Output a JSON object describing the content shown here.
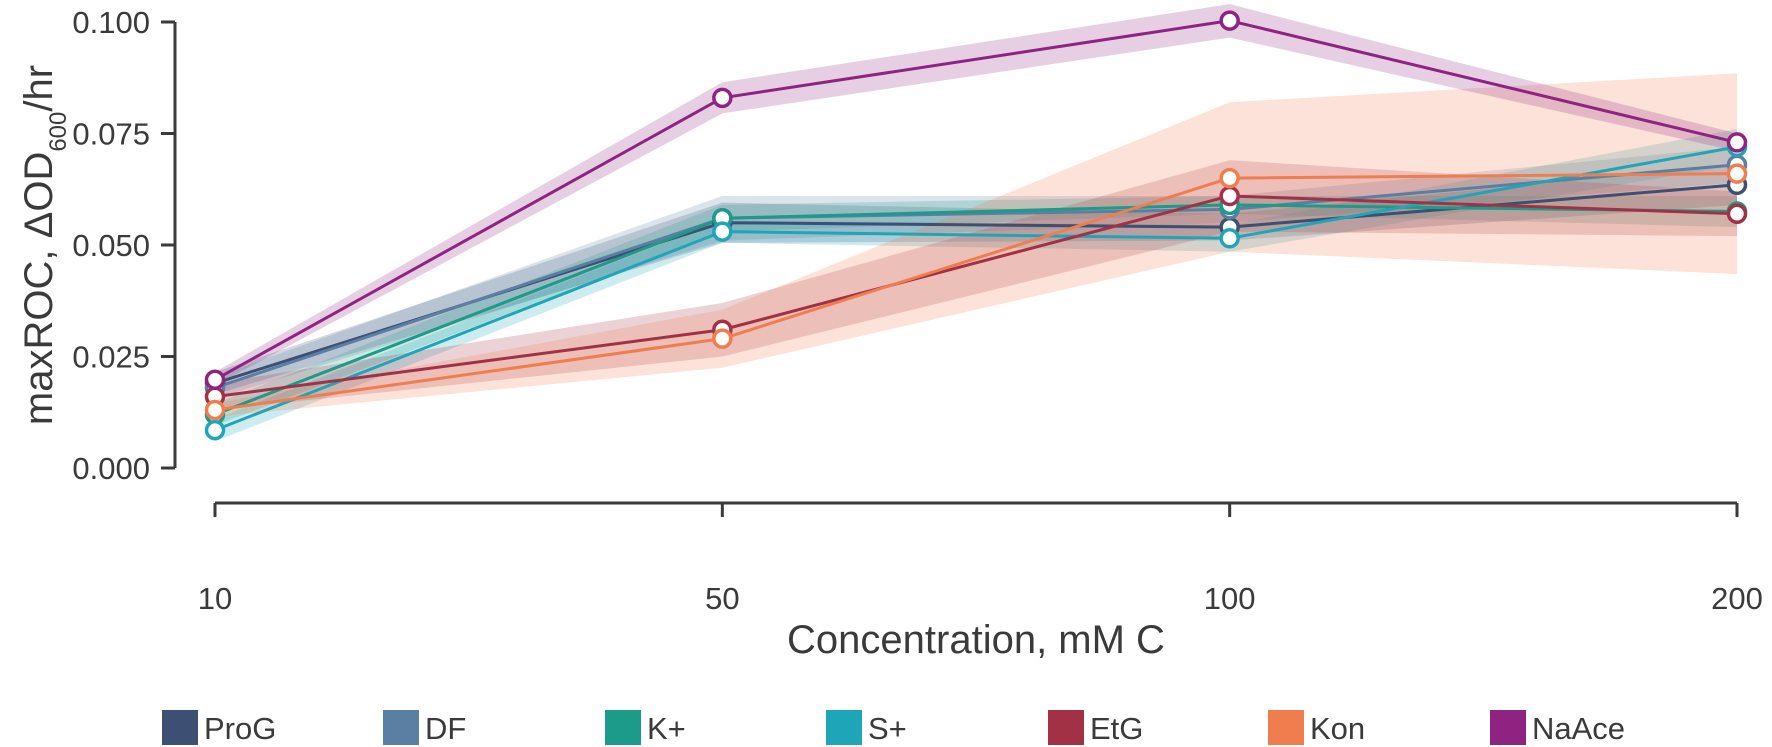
{
  "chart_data": {
    "type": "line",
    "xlabel": "Concentration, mM C",
    "ylabel": {
      "prefix": "maxROC, ΔOD",
      "subscript": "600",
      "suffix": "/hr"
    },
    "categories": [
      "10",
      "50",
      "100",
      "200"
    ],
    "ylim": [
      0.0,
      0.1
    ],
    "yticks": [
      "0.000",
      "0.025",
      "0.050",
      "0.075",
      "0.100"
    ],
    "ytick_values": [
      0.0,
      0.025,
      0.05,
      0.075,
      0.1
    ],
    "grid": false,
    "legend_position": "bottom",
    "series": [
      {
        "name": "ProG",
        "color": "#3d4f73",
        "values": [
          0.019,
          0.055,
          0.054,
          0.0635
        ],
        "lower": [
          0.0165,
          0.0505,
          0.051,
          0.059
        ],
        "upper": [
          0.0215,
          0.0595,
          0.057,
          0.068
        ]
      },
      {
        "name": "DF",
        "color": "#5a7fa3",
        "values": [
          0.018,
          0.056,
          0.058,
          0.068
        ],
        "lower": [
          0.0155,
          0.051,
          0.055,
          0.064
        ],
        "upper": [
          0.0205,
          0.061,
          0.061,
          0.072
        ]
      },
      {
        "name": "K+",
        "color": "#1c9a8a",
        "values": [
          0.012,
          0.056,
          0.059,
          0.0575
        ],
        "lower": [
          0.0095,
          0.053,
          0.057,
          0.054
        ],
        "upper": [
          0.0145,
          0.059,
          0.061,
          0.061
        ]
      },
      {
        "name": "S+",
        "color": "#1ea6b8",
        "values": [
          0.0085,
          0.053,
          0.0515,
          0.072
        ],
        "lower": [
          0.006,
          0.0505,
          0.0485,
          0.068
        ],
        "upper": [
          0.011,
          0.0555,
          0.0545,
          0.076
        ]
      },
      {
        "name": "EtG",
        "color": "#a33145",
        "values": [
          0.016,
          0.031,
          0.061,
          0.057
        ],
        "lower": [
          0.013,
          0.025,
          0.053,
          0.052
        ],
        "upper": [
          0.019,
          0.037,
          0.069,
          0.062
        ]
      },
      {
        "name": "Kon",
        "color": "#f07d4e",
        "values": [
          0.013,
          0.029,
          0.065,
          0.066
        ],
        "lower": [
          0.0115,
          0.0225,
          0.0485,
          0.0435
        ],
        "upper": [
          0.0145,
          0.0355,
          0.082,
          0.0885
        ]
      },
      {
        "name": "NaAce",
        "color": "#8e2381",
        "values": [
          0.0198,
          0.083,
          0.1003,
          0.073
        ],
        "lower": [
          0.0185,
          0.0795,
          0.0965,
          0.071
        ],
        "upper": [
          0.0215,
          0.0865,
          0.104,
          0.075
        ]
      }
    ]
  }
}
